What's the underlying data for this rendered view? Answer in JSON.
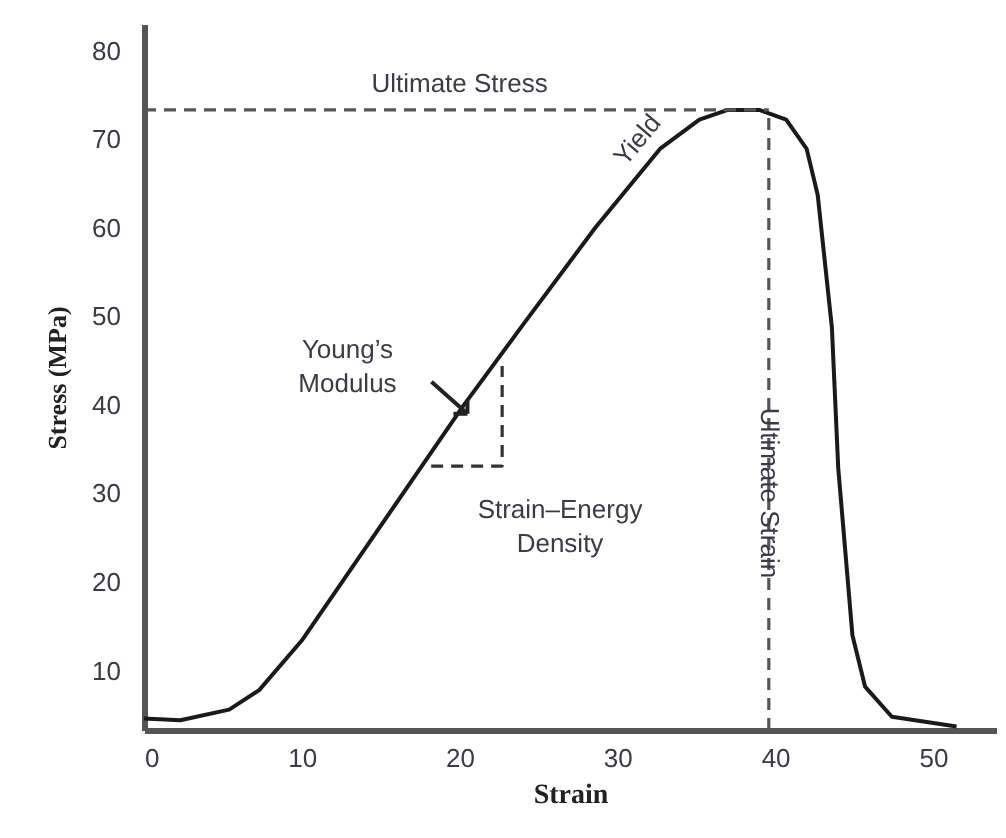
{
  "chart_data": {
    "type": "line",
    "xlabel": "Strain",
    "ylabel": "Stress (MPa)",
    "xlim": [
      0,
      54
    ],
    "ylim": [
      3.3,
      83
    ],
    "xticks": [
      0,
      10,
      20,
      30,
      40,
      50
    ],
    "yticks": [
      10,
      20,
      30,
      40,
      50,
      60,
      70,
      80
    ],
    "grid": false,
    "marker": "none",
    "series": [
      {
        "color": "#1a1a1a",
        "line_style": "solid",
        "x": [
          0,
          2.3,
          5.4,
          7.3,
          10,
          20.2,
          24,
          28.6,
          32.7,
          35.2,
          37,
          39,
          40.7,
          42,
          42.7,
          43.6,
          44,
          44.9,
          45.7,
          47.4,
          51.5
        ],
        "values": [
          4.6,
          4.4,
          5.6,
          7.8,
          13.4,
          39.8,
          49,
          60,
          68.9,
          72.2,
          73.3,
          73.3,
          72.2,
          68.9,
          63.7,
          48.7,
          32.9,
          14,
          8.2,
          4.8,
          3.7
        ]
      },
      {
        "color": "#555555",
        "line_style": "dashed",
        "x": [
          0,
          39.6
        ],
        "values": [
          73.3,
          73.3
        ]
      },
      {
        "color": "#555555",
        "line_style": "dashed",
        "x": [
          39.6,
          39.6
        ],
        "values": [
          3.3,
          73.3
        ]
      },
      {
        "color": "#333333",
        "line_style": "dashed",
        "x": [
          18.2,
          22.7,
          22.7
        ],
        "values": [
          33.1,
          33.1,
          44.4
        ]
      }
    ],
    "annotations": [
      {
        "text": "Ultimate Stress",
        "x": 20,
        "y": 73.3
      },
      {
        "text": "Yield",
        "x": 33,
        "y": 70
      },
      {
        "text": "Ultimate Strain",
        "x": 39.6,
        "y": 33
      },
      {
        "text": "Young’s Modulus",
        "x": 20.5,
        "y": 39
      },
      "Strain–Energy Density"
    ]
  }
}
